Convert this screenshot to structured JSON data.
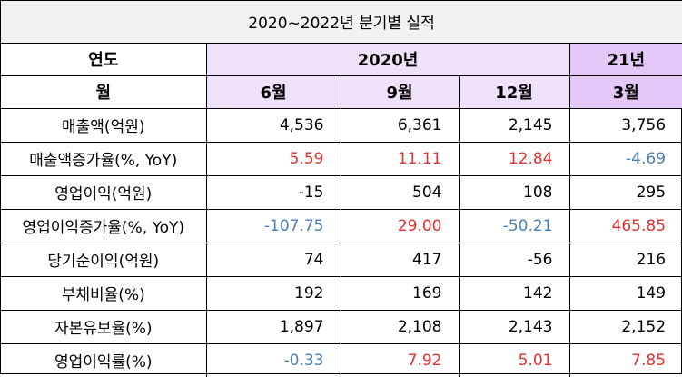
{
  "title": "2020~2022년 분기별 실적",
  "header": {
    "year_label": "연도",
    "month_label": "월",
    "year_2020": "2020년",
    "year_21": "21년",
    "months": [
      "6월",
      "9월",
      "12월",
      "3월"
    ]
  },
  "colors": {
    "positive": "#e03131",
    "negative": "#4a7eb7",
    "header_2020": "#f0e1fb",
    "header_21": "#e5c8f7",
    "title_bg": "#f2f2f2"
  },
  "rows": [
    {
      "label": "매출액(억원)",
      "values": [
        "4,536",
        "6,361",
        "2,145",
        "3,756"
      ],
      "colors": [
        "black",
        "black",
        "black",
        "black"
      ]
    },
    {
      "label": "매출액증가율(%, YoY)",
      "values": [
        "5.59",
        "11.11",
        "12.84",
        "-4.69"
      ],
      "colors": [
        "red",
        "red",
        "red",
        "blue"
      ]
    },
    {
      "label": "영업이익(억원)",
      "values": [
        "-15",
        "504",
        "108",
        "295"
      ],
      "colors": [
        "black",
        "black",
        "black",
        "black"
      ]
    },
    {
      "label": "영업이익증가율(%, YoY)",
      "values": [
        "-107.75",
        "29.00",
        "-50.21",
        "465.85"
      ],
      "colors": [
        "blue",
        "red",
        "blue",
        "red"
      ]
    },
    {
      "label": "당기순이익(억원)",
      "values": [
        "74",
        "417",
        "-56",
        "216"
      ],
      "colors": [
        "black",
        "black",
        "black",
        "black"
      ]
    },
    {
      "label": "부채비율(%)",
      "values": [
        "192",
        "169",
        "142",
        "149"
      ],
      "colors": [
        "black",
        "black",
        "black",
        "black"
      ]
    },
    {
      "label": "자본유보율(%)",
      "values": [
        "1,897",
        "2,108",
        "2,143",
        "2,152"
      ],
      "colors": [
        "black",
        "black",
        "black",
        "black"
      ]
    },
    {
      "label": "영업이익률(%)",
      "values": [
        "-0.33",
        "7.92",
        "5.01",
        "7.85"
      ],
      "colors": [
        "blue",
        "red",
        "red",
        "red"
      ]
    }
  ]
}
